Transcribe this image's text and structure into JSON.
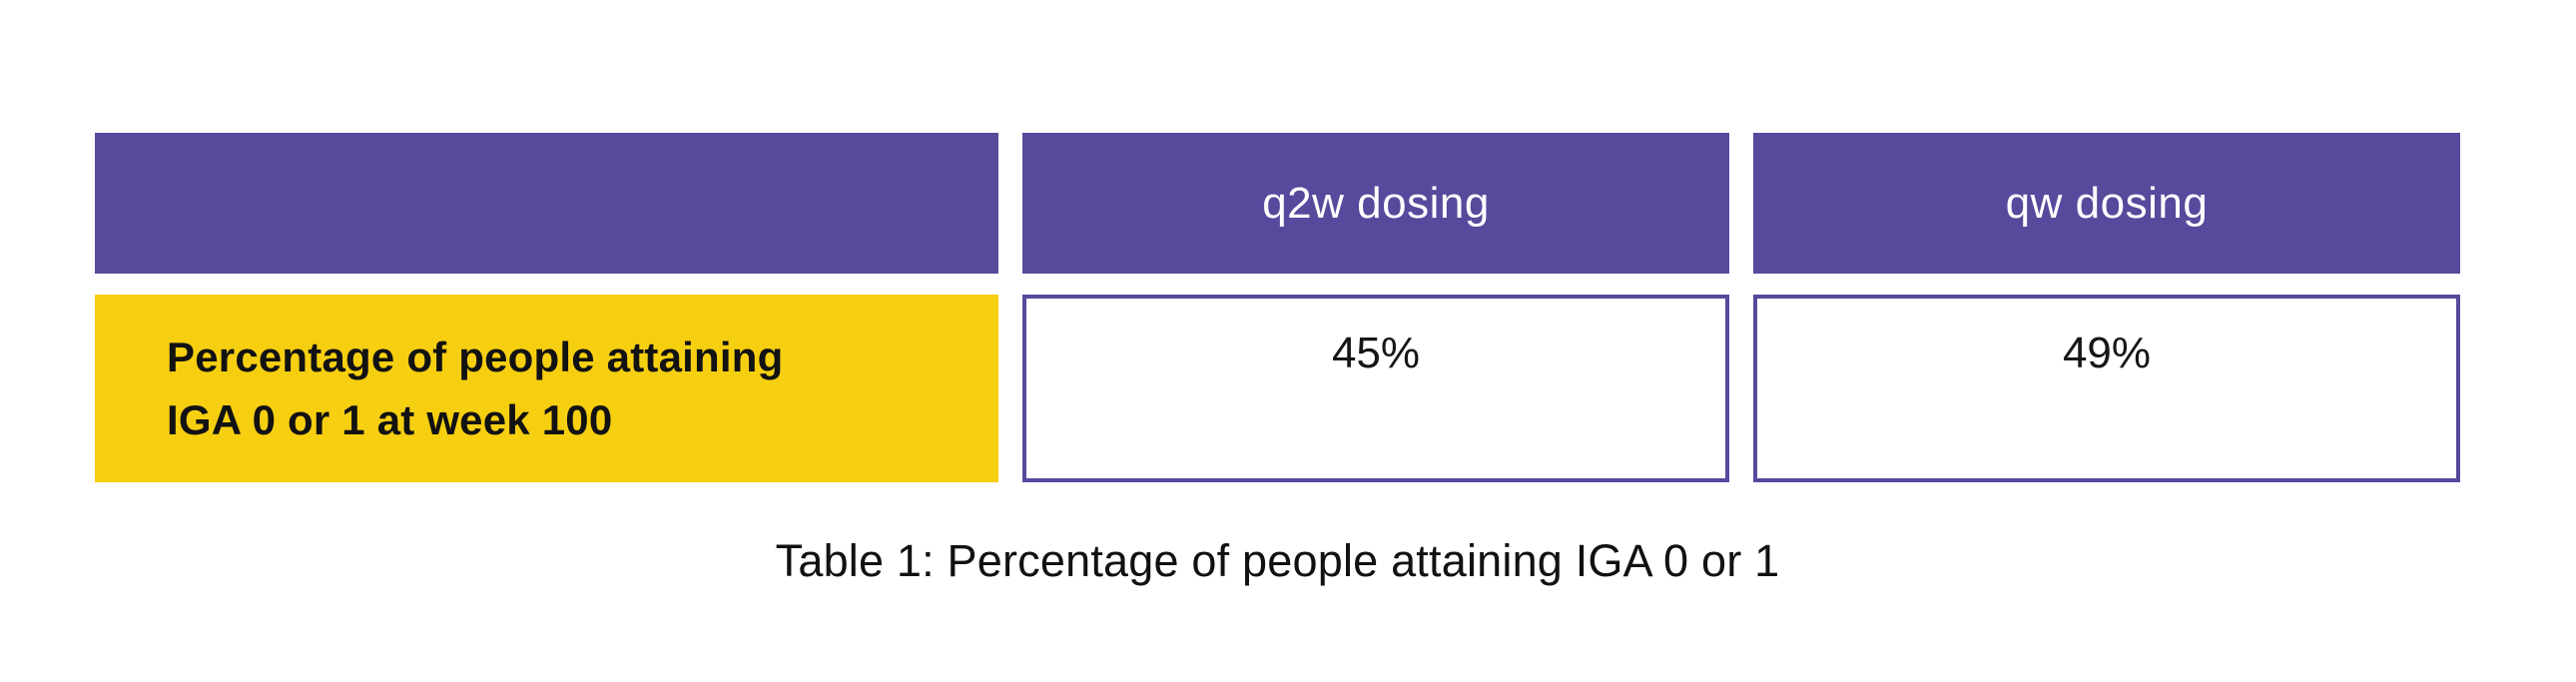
{
  "colors": {
    "header_bg": "#554A9C",
    "row_label_bg": "#F7CF11",
    "value_cell_border": "#554A9C",
    "header_text": "#FFFFFF",
    "body_text": "#111111"
  },
  "chart_data": {
    "type": "table",
    "title": "Table 1: Percentage of people attaining IGA 0 or 1",
    "columns": [
      "",
      "q2w dosing",
      "qw dosing"
    ],
    "rows": [
      {
        "label": "Percentage of people attaining IGA 0 or 1 at week 100",
        "values": [
          "45%",
          "49%"
        ]
      }
    ],
    "layout_hints": {
      "header_style": "solid purple fill, white centered text",
      "row_label_style": "solid yellow fill, bold black left-aligned text",
      "value_cell_style": "white fill, purple border, top-centered text",
      "caption_position": "bottom-center"
    }
  }
}
